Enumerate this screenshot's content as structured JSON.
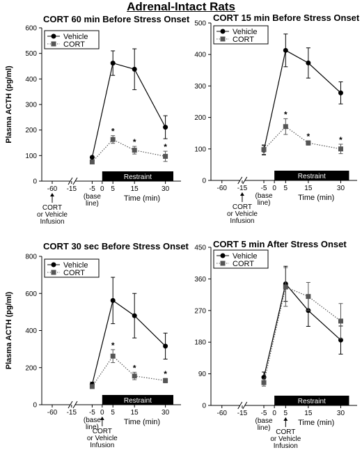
{
  "title": "Adrenal-Intact Rats",
  "chart_data": [
    {
      "type": "line",
      "title": "CORT 60 min Before Stress Onset",
      "ylabel": "Plasma ACTH (pg/ml)",
      "xlabel": "Time (min)",
      "ylim": [
        0,
        600
      ],
      "yticks": [
        0,
        100,
        200,
        300,
        400,
        500,
        600
      ],
      "xticks": [
        -60,
        -15,
        -5,
        0,
        5,
        15,
        30
      ],
      "baseline_label": [
        "(base",
        "line)"
      ],
      "bar_label": "Restraint",
      "infusion_time": -60,
      "infusion_label": [
        "CORT",
        "or Vehicle",
        "Infusion"
      ],
      "legend": [
        "Vehicle",
        "CORT"
      ],
      "series": [
        {
          "name": "Vehicle",
          "x": [
            -5,
            5,
            15,
            30
          ],
          "y": [
            93,
            462,
            438,
            211
          ],
          "err": [
            0,
            48,
            80,
            45
          ]
        },
        {
          "name": "CORT",
          "x": [
            -5,
            5,
            15,
            30
          ],
          "y": [
            75,
            163,
            121,
            97
          ],
          "err": [
            8,
            15,
            15,
            20
          ],
          "stars": [
            false,
            true,
            true,
            true
          ]
        }
      ]
    },
    {
      "type": "line",
      "title": "CORT 15 min Before Stress Onset",
      "ylabel": "",
      "xlabel": "Time (min)",
      "ylim": [
        0,
        500
      ],
      "yticks": [
        0,
        100,
        200,
        300,
        400,
        500
      ],
      "xticks": [
        -60,
        -15,
        -5,
        0,
        5,
        15,
        30
      ],
      "baseline_label": [
        "(base",
        "line)"
      ],
      "bar_label": "Restraint",
      "infusion_time": -15,
      "infusion_label": [
        "CORT",
        "or Vehicle",
        "Infusion"
      ],
      "legend": [
        "Vehicle",
        "CORT"
      ],
      "series": [
        {
          "name": "Vehicle",
          "x": [
            -5,
            5,
            15,
            30
          ],
          "y": [
            96,
            413,
            373,
            278
          ],
          "err": [
            15,
            52,
            48,
            35
          ]
        },
        {
          "name": "CORT",
          "x": [
            -5,
            5,
            15,
            30
          ],
          "y": [
            98,
            171,
            119,
            100
          ],
          "err": [
            15,
            25,
            7,
            15
          ],
          "stars": [
            false,
            true,
            true,
            true
          ]
        }
      ]
    },
    {
      "type": "line",
      "title": "CORT 30 sec Before Stress Onset",
      "ylabel": "Plasma ACTH (pg/ml)",
      "xlabel": "Time (min)",
      "ylim": [
        0,
        800
      ],
      "yticks": [
        0,
        200,
        400,
        600,
        800
      ],
      "xticks": [
        -60,
        -15,
        -5,
        0,
        5,
        15,
        30
      ],
      "baseline_label": [
        "(base",
        "line)"
      ],
      "bar_label": "Restraint",
      "infusion_time": 0,
      "infusion_label": [
        "CORT",
        "or Vehicle",
        "Infusion"
      ],
      "legend": [
        "Vehicle",
        "CORT"
      ],
      "series": [
        {
          "name": "Vehicle",
          "x": [
            -5,
            5,
            15,
            30
          ],
          "y": [
            110,
            562,
            480,
            316
          ],
          "err": [
            12,
            125,
            120,
            70
          ]
        },
        {
          "name": "CORT",
          "x": [
            -5,
            5,
            15,
            30
          ],
          "y": [
            98,
            262,
            155,
            130
          ],
          "err": [
            10,
            35,
            20,
            12
          ],
          "stars": [
            false,
            true,
            true,
            true
          ]
        }
      ]
    },
    {
      "type": "line",
      "title": "CORT 5 min After Stress Onset",
      "ylabel": "",
      "xlabel": "Time (min)",
      "ylim": [
        0,
        450
      ],
      "yticks": [
        0,
        90,
        180,
        270,
        360,
        450
      ],
      "xticks": [
        -60,
        -15,
        -5,
        0,
        5,
        15,
        30
      ],
      "baseline_label": [
        "(base",
        "line)"
      ],
      "bar_label": "Restraint",
      "infusion_time": 5,
      "infusion_label": [
        "CORT",
        "or Vehicle",
        "Infusion"
      ],
      "legend": [
        "Vehicle",
        "CORT"
      ],
      "series": [
        {
          "name": "Vehicle",
          "x": [
            -5,
            5,
            15,
            30
          ],
          "y": [
            80,
            346,
            270,
            186
          ],
          "err": [
            15,
            50,
            45,
            40
          ]
        },
        {
          "name": "CORT",
          "x": [
            -5,
            5,
            15,
            30
          ],
          "y": [
            65,
            337,
            310,
            240
          ],
          "err": [
            10,
            55,
            40,
            50
          ],
          "stars": [
            false,
            false,
            false,
            false
          ]
        }
      ]
    }
  ]
}
